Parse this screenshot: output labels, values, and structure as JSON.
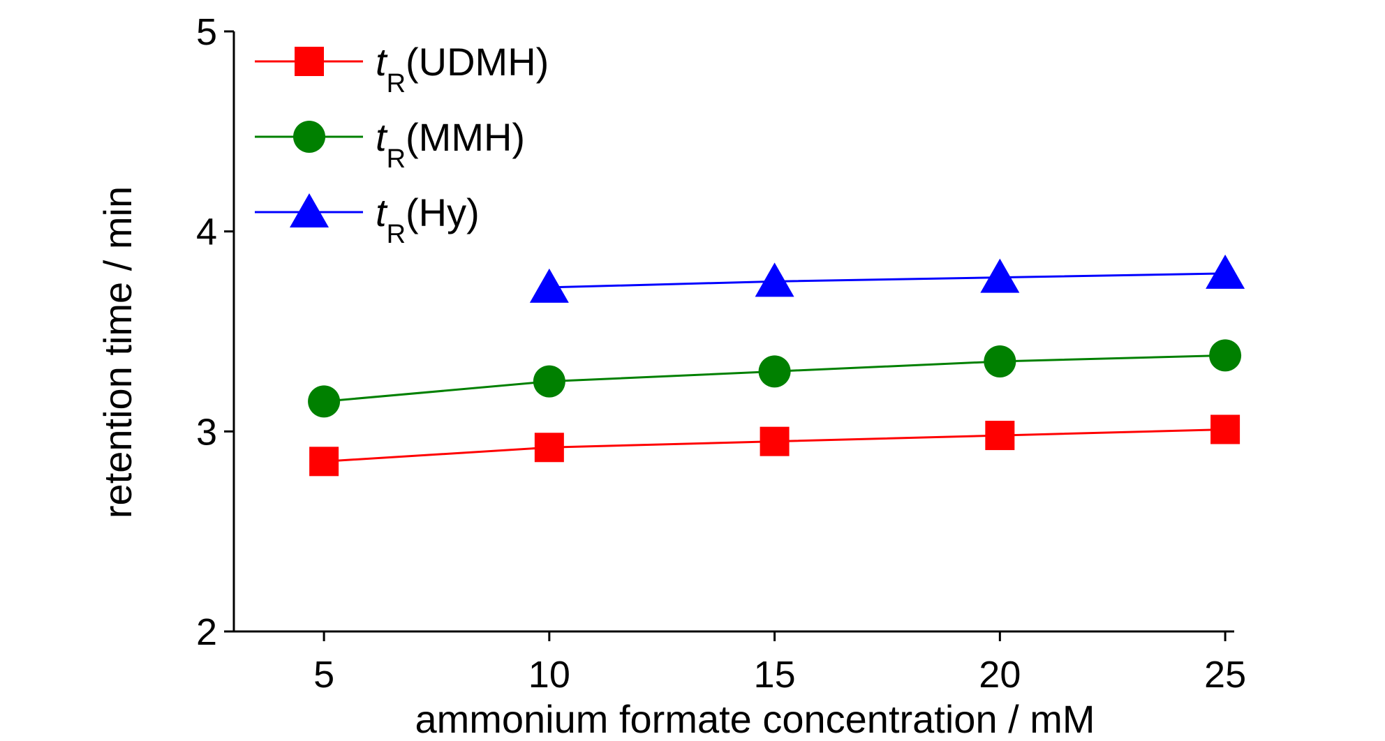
{
  "chart_data": {
    "type": "line",
    "xlabel": "ammonium formate concentration / mM",
    "ylabel": "retention time / min",
    "xlim": [
      3,
      25.2
    ],
    "ylim": [
      2,
      5
    ],
    "xticks": [
      5,
      10,
      15,
      20,
      25
    ],
    "yticks": [
      2,
      3,
      4,
      5
    ],
    "grid": false,
    "legend_position": "top-left",
    "series": [
      {
        "name": "tR(UDMH)",
        "legend_main": "t",
        "legend_sub": "R",
        "legend_rest": "(UDMH)",
        "color": "#ff0000",
        "marker": "square",
        "x": [
          5,
          10,
          15,
          20,
          25
        ],
        "y": [
          2.85,
          2.92,
          2.95,
          2.98,
          3.01
        ]
      },
      {
        "name": "tR(MMH)",
        "legend_main": "t",
        "legend_sub": "R",
        "legend_rest": "(MMH)",
        "color": "#008000",
        "marker": "circle",
        "x": [
          5,
          10,
          15,
          20,
          25
        ],
        "y": [
          3.15,
          3.25,
          3.3,
          3.35,
          3.38
        ]
      },
      {
        "name": "tR(Hy)",
        "legend_main": "t",
        "legend_sub": "R",
        "legend_rest": "(Hy)",
        "color": "#0000ff",
        "marker": "triangle",
        "x": [
          10,
          15,
          20,
          25
        ],
        "y": [
          3.72,
          3.75,
          3.77,
          3.79
        ]
      }
    ]
  }
}
